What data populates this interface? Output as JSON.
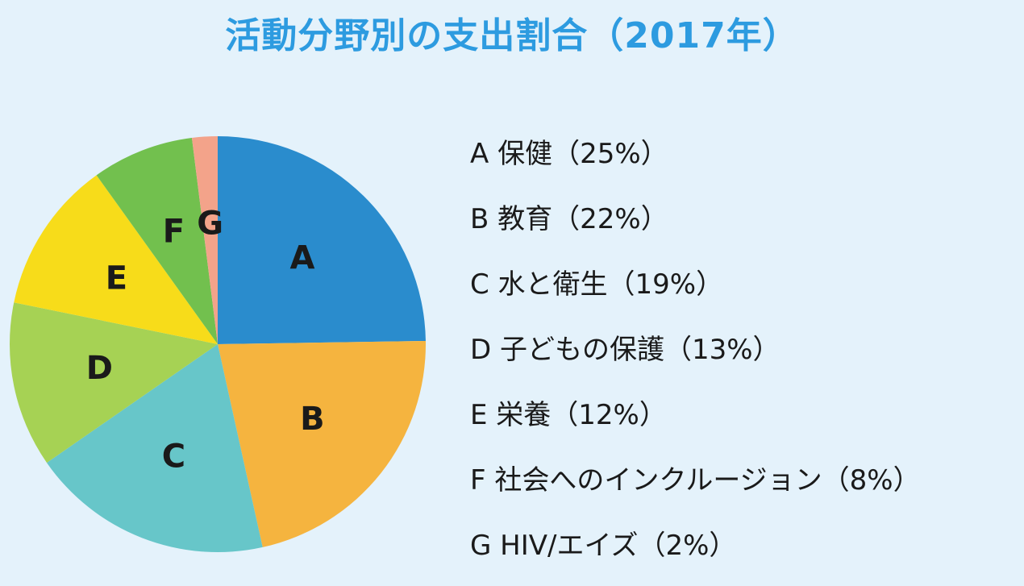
{
  "title": "活動分野別の支出割合（2017年）",
  "chart_data": {
    "type": "pie",
    "title": "活動分野別の支出割合（2017年）",
    "categories": [
      "A",
      "B",
      "C",
      "D",
      "E",
      "F",
      "G"
    ],
    "values": [
      25,
      22,
      19,
      13,
      12,
      8,
      2
    ],
    "colors": [
      "#2a8ccd",
      "#f5b43f",
      "#67c6c9",
      "#a6d254",
      "#f7dc1a",
      "#72c04e",
      "#f3a38a"
    ],
    "legend": [
      "A 保健（25%）",
      "B 教育（22%）",
      "C 水と衛生（19%）",
      "D 子どもの保護（13%）",
      "E 栄養（12%）",
      "F 社会へのインクルージョン（8%）",
      "G HIV/エイズ（2%）"
    ],
    "legend_position": "right",
    "start_angle": "12 o'clock",
    "direction": "clockwise"
  }
}
